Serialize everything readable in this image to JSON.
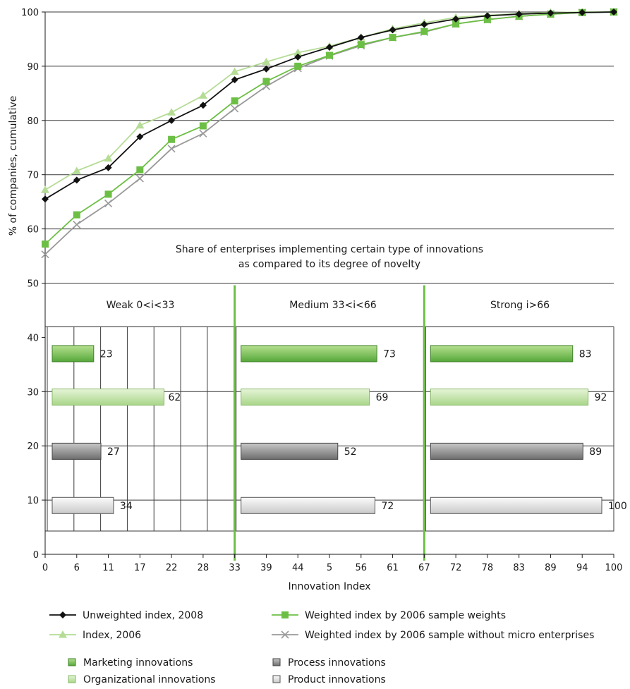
{
  "chart_data": {
    "type": "line",
    "xlabel": "Innovation Index",
    "ylabel": "% of companies, cumulative",
    "ylim": [
      0,
      100
    ],
    "yticks": [
      "0",
      "10",
      "20",
      "30",
      "40",
      "50",
      "60",
      "70",
      "80",
      "90",
      "100"
    ],
    "x": [
      "0",
      "6",
      "11",
      "17",
      "22",
      "28",
      "33",
      "39",
      "44",
      "5",
      "56",
      "61",
      "67",
      "72",
      "78",
      "83",
      "89",
      "94",
      "100"
    ],
    "grid": true,
    "legend_position": "bottom",
    "series": [
      {
        "name": "Unweighted index, 2008",
        "color": "#111111",
        "marker": "diamond",
        "values": [
          65.5,
          69,
          71.3,
          77,
          80,
          82.8,
          87.5,
          89.5,
          91.7,
          93.5,
          95.3,
          96.7,
          97.7,
          98.7,
          99.3,
          99.6,
          99.8,
          99.9,
          100
        ]
      },
      {
        "name": "Weighted index by 2006 sample weights",
        "color": "#6cbf44",
        "marker": "square",
        "values": [
          57.2,
          62.6,
          66.4,
          70.9,
          76.5,
          79,
          83.6,
          87.2,
          90,
          92,
          94,
          95.3,
          96.4,
          97.8,
          98.6,
          99.2,
          99.6,
          99.9,
          100
        ]
      },
      {
        "name": "Index, 2006",
        "color": "#b5dc95",
        "marker": "triangle",
        "values": [
          67.2,
          70.7,
          73,
          79.1,
          81.5,
          84.6,
          89,
          90.8,
          92.5,
          93.7,
          95.3,
          96.9,
          98,
          99,
          99.4,
          99.7,
          99.9,
          100,
          100
        ]
      },
      {
        "name": "Weighted index by 2006 sample without micro enterprises",
        "color": "#999999",
        "marker": "cross",
        "values": [
          55.3,
          60.8,
          64.7,
          69.3,
          74.8,
          77.6,
          82.2,
          86.3,
          89.6,
          91.9,
          93.8,
          95.3,
          96.3,
          97.8,
          98.6,
          99.2,
          99.6,
          99.9,
          100
        ]
      }
    ],
    "segments": [
      "Weak 0<i<33",
      "Medium 33<i<66",
      "Strong i>66"
    ],
    "note_lines": [
      "Share of enterprises implementing certain type of innovations",
      "as compared to its degree of novelty"
    ],
    "bar_series": [
      {
        "name": "Marketing innovations",
        "fill_top": "#b6e08f",
        "fill_bottom": "#55a83a",
        "stroke": "#3e7f29",
        "y": 37,
        "values": [
          23,
          73,
          83
        ]
      },
      {
        "name": "Organizational innovations",
        "fill_top": "#e6f4d8",
        "fill_bottom": "#a9d688",
        "stroke": "#86b866",
        "y": 29,
        "values": [
          62,
          69,
          92
        ]
      },
      {
        "name": "Process innovations",
        "fill_top": "#c8c8c8",
        "fill_bottom": "#6e6e6e",
        "stroke": "#444444",
        "y": 19,
        "values": [
          27,
          52,
          89
        ]
      },
      {
        "name": "Product innovations",
        "fill_top": "#fbfbfb",
        "fill_bottom": "#c9c9c9",
        "stroke": "#555555",
        "y": 9,
        "values": [
          34,
          72,
          100
        ]
      }
    ],
    "bar_scale_max": 100
  }
}
